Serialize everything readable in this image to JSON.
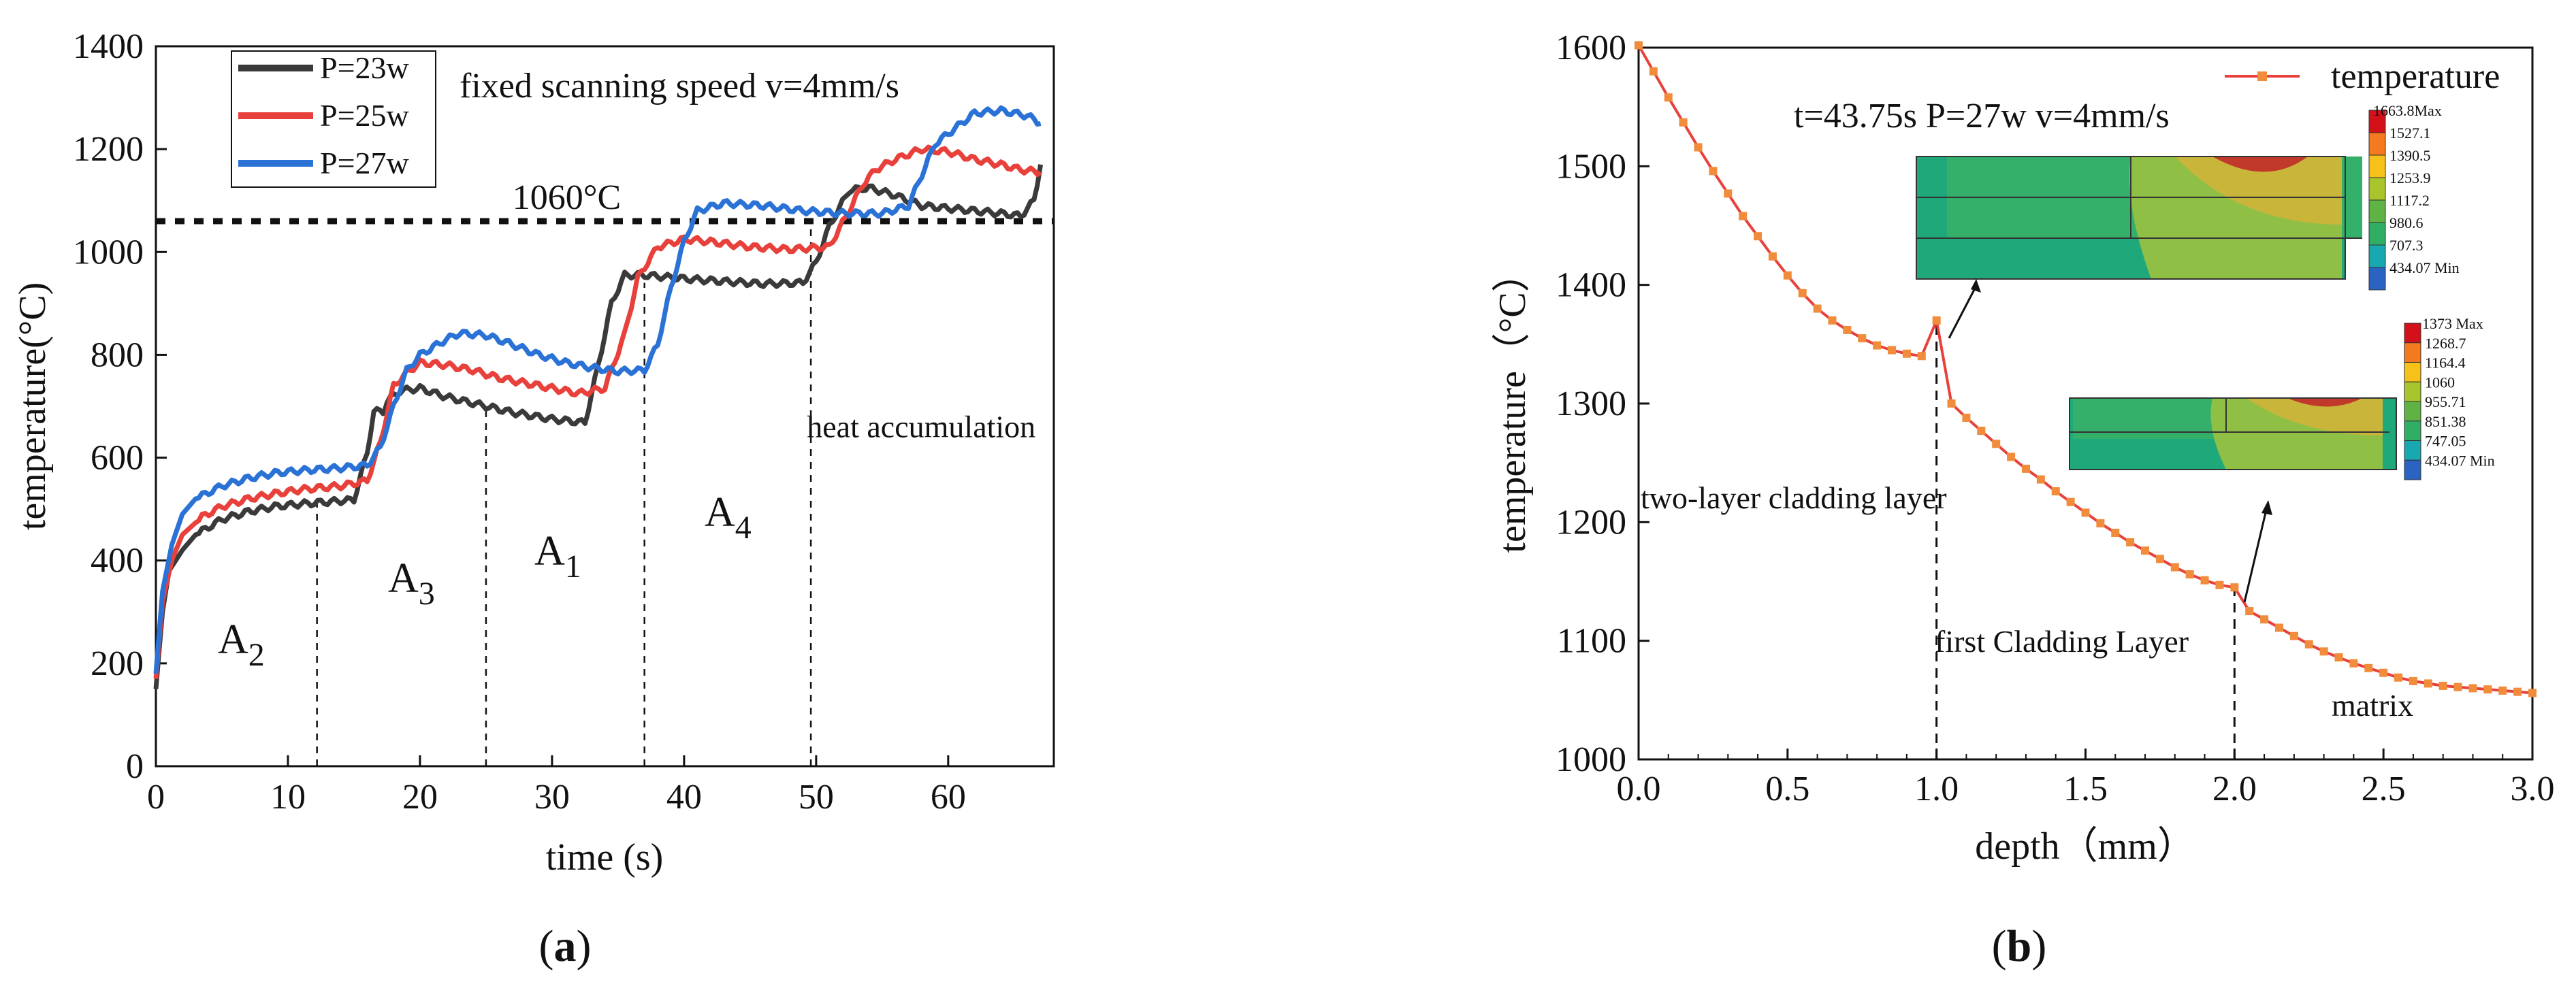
{
  "chart_data": [
    {
      "type": "line",
      "xlabel": "time (s)",
      "ylabel": "temperature(°C)",
      "xlim": [
        0,
        68
      ],
      "ylim": [
        0,
        1400
      ],
      "xticks": [
        0,
        10,
        20,
        30,
        40,
        50,
        60
      ],
      "yticks": [
        0,
        200,
        400,
        600,
        800,
        1000,
        1200,
        1400
      ],
      "annotation": "fixed scanning speed v=4mm/s",
      "reference_line": {
        "label": "1060°C",
        "value": 1060
      },
      "vlines": [
        12.2,
        25,
        37,
        49.6
      ],
      "regions": [
        {
          "base": "A",
          "sub": "2",
          "x": 5.5,
          "y": 230
        },
        {
          "base": "A",
          "sub": "3",
          "x": 19,
          "y": 330
        },
        {
          "base": "A",
          "sub": "1",
          "x": 30.5,
          "y": 390
        },
        {
          "base": "A",
          "sub": "4",
          "x": 43.5,
          "y": 470
        }
      ],
      "note": "heat accumulation",
      "legend_position": "top-left",
      "series": [
        {
          "name": "P=23w",
          "color": "#3a3a3a",
          "points": [
            [
              0,
              150
            ],
            [
              0.5,
              300
            ],
            [
              1,
              380
            ],
            [
              2,
              420
            ],
            [
              3,
              450
            ],
            [
              5,
              480
            ],
            [
              7,
              495
            ],
            [
              9,
              505
            ],
            [
              11,
              510
            ],
            [
              15,
              518
            ],
            [
              16,
              610
            ],
            [
              16.5,
              690
            ],
            [
              17.2,
              690
            ],
            [
              17.5,
              710
            ],
            [
              18.5,
              730
            ],
            [
              20,
              735
            ],
            [
              22,
              718
            ],
            [
              25,
              700
            ],
            [
              27,
              688
            ],
            [
              30,
              675
            ],
            [
              32.5,
              668
            ],
            [
              33.5,
              780
            ],
            [
              34.5,
              900
            ],
            [
              35.5,
              955
            ],
            [
              37,
              955
            ],
            [
              40,
              948
            ],
            [
              43,
              943
            ],
            [
              46,
              938
            ],
            [
              49,
              940
            ],
            [
              50,
              980
            ],
            [
              51,
              1050
            ],
            [
              52.5,
              1120
            ],
            [
              54,
              1125
            ],
            [
              56,
              1110
            ],
            [
              58,
              1090
            ],
            [
              60,
              1085
            ],
            [
              62,
              1080
            ],
            [
              64,
              1075
            ],
            [
              65.5,
              1070
            ],
            [
              66.5,
              1100
            ],
            [
              67,
              1170
            ]
          ]
        },
        {
          "name": "P=25w",
          "color": "#e8413c",
          "points": [
            [
              0,
              170
            ],
            [
              0.5,
              320
            ],
            [
              1.2,
              400
            ],
            [
              2,
              450
            ],
            [
              3.5,
              485
            ],
            [
              5,
              505
            ],
            [
              7,
              520
            ],
            [
              9,
              530
            ],
            [
              11,
              538
            ],
            [
              14,
              545
            ],
            [
              16,
              555
            ],
            [
              17,
              630
            ],
            [
              18,
              740
            ],
            [
              19,
              765
            ],
            [
              20,
              785
            ],
            [
              22,
              780
            ],
            [
              24,
              770
            ],
            [
              26,
              755
            ],
            [
              28,
              745
            ],
            [
              30,
              735
            ],
            [
              32,
              725
            ],
            [
              34,
              735
            ],
            [
              35.5,
              840
            ],
            [
              36.5,
              950
            ],
            [
              38,
              1010
            ],
            [
              40,
              1025
            ],
            [
              42,
              1020
            ],
            [
              45,
              1010
            ],
            [
              48,
              1005
            ],
            [
              51,
              1010
            ],
            [
              52.5,
              1080
            ],
            [
              53.5,
              1130
            ],
            [
              54.5,
              1160
            ],
            [
              56,
              1180
            ],
            [
              58,
              1200
            ],
            [
              60,
              1195
            ],
            [
              62,
              1180
            ],
            [
              64,
              1170
            ],
            [
              65.5,
              1160
            ],
            [
              67,
              1155
            ]
          ]
        },
        {
          "name": "P=27w",
          "color": "#2a72d6",
          "points": [
            [
              0,
              180
            ],
            [
              0.5,
              340
            ],
            [
              1.2,
              430
            ],
            [
              2,
              490
            ],
            [
              3,
              520
            ],
            [
              5,
              545
            ],
            [
              7,
              560
            ],
            [
              9,
              570
            ],
            [
              11,
              575
            ],
            [
              14,
              580
            ],
            [
              16,
              585
            ],
            [
              17,
              620
            ],
            [
              18,
              700
            ],
            [
              19,
              770
            ],
            [
              20,
              800
            ],
            [
              22,
              830
            ],
            [
              23,
              842
            ],
            [
              25,
              838
            ],
            [
              27,
              820
            ],
            [
              29,
              800
            ],
            [
              31,
              785
            ],
            [
              33,
              775
            ],
            [
              35,
              768
            ],
            [
              37,
              770
            ],
            [
              38,
              820
            ],
            [
              39,
              930
            ],
            [
              40,
              1020
            ],
            [
              41,
              1080
            ],
            [
              43,
              1095
            ],
            [
              46,
              1090
            ],
            [
              49,
              1080
            ],
            [
              52,
              1075
            ],
            [
              55,
              1075
            ],
            [
              57,
              1090
            ],
            [
              58,
              1150
            ],
            [
              59,
              1210
            ],
            [
              60,
              1230
            ],
            [
              61,
              1250
            ],
            [
              62,
              1270
            ],
            [
              64,
              1275
            ],
            [
              66,
              1265
            ],
            [
              67,
              1250
            ]
          ]
        }
      ]
    },
    {
      "type": "line",
      "xlabel": "depth（mm）",
      "ylabel": "temperature（°C）",
      "xlim": [
        0,
        3.0
      ],
      "ylim": [
        1000,
        1600
      ],
      "xticks": [
        "0.0",
        "0.5",
        "1.0",
        "1.5",
        "2.0",
        "2.5",
        "3.0"
      ],
      "yticks": [
        1000,
        1100,
        1200,
        1300,
        1400,
        1500,
        1600
      ],
      "legend": "temperature",
      "legend_position": "top-right",
      "annotation": "t=43.75s   P=27w   v=4mm/s",
      "labels": {
        "two_layer": "two-layer cladding layer",
        "first": "first Cladding Layer",
        "matrix": "matrix"
      },
      "vlines": [
        1.0,
        2.0
      ],
      "series": [
        {
          "name": "temperature",
          "color": "#e8413c",
          "marker_color": "#f08c3c",
          "x": [
            0,
            0.05,
            0.1,
            0.15,
            0.2,
            0.25,
            0.3,
            0.35,
            0.4,
            0.45,
            0.5,
            0.55,
            0.6,
            0.65,
            0.7,
            0.75,
            0.8,
            0.85,
            0.9,
            0.95,
            1.0,
            1.05,
            1.1,
            1.15,
            1.2,
            1.25,
            1.3,
            1.35,
            1.4,
            1.45,
            1.5,
            1.55,
            1.6,
            1.65,
            1.7,
            1.75,
            1.8,
            1.85,
            1.9,
            1.95,
            2.0,
            2.05,
            2.1,
            2.15,
            2.2,
            2.25,
            2.3,
            2.35,
            2.4,
            2.45,
            2.5,
            2.55,
            2.6,
            2.65,
            2.7,
            2.75,
            2.8,
            2.85,
            2.9,
            2.95,
            3.0
          ],
          "y": [
            1602,
            1580,
            1558,
            1537,
            1516,
            1496,
            1477,
            1458,
            1441,
            1424,
            1408,
            1393,
            1380,
            1370,
            1362,
            1355,
            1349,
            1345,
            1342,
            1340,
            1370,
            1300,
            1288,
            1277,
            1266,
            1255,
            1245,
            1236,
            1226,
            1217,
            1208,
            1199,
            1191,
            1183,
            1176,
            1169,
            1162,
            1156,
            1151,
            1147,
            1145,
            1125,
            1118,
            1111,
            1104,
            1097,
            1091,
            1086,
            1081,
            1077,
            1073,
            1069,
            1066,
            1064,
            1062,
            1061,
            1060,
            1059,
            1058,
            1057,
            1056
          ]
        }
      ],
      "insets": [
        {
          "title_max": "1663.8Max",
          "levels": [
            "1527.1",
            "1390.5",
            "1253.9",
            "1117.2",
            "980.6",
            "707.3",
            "434.07 Min"
          ]
        },
        {
          "title_max": "1373 Max",
          "levels": [
            "1268.7",
            "1164.4",
            "1060",
            "955.71",
            "851.38",
            "747.05",
            "434.07 Min"
          ]
        }
      ]
    }
  ],
  "panel_labels": {
    "a_open": "(",
    "a_letter": "a",
    "a_close": ")",
    "b_open": "(",
    "b_letter": "b",
    "b_close": ")"
  },
  "colors": {
    "cb": [
      "#d4111b",
      "#f47a1f",
      "#f6c21a",
      "#a8c52e",
      "#5fb244",
      "#2fae64",
      "#18a9b0",
      "#2a63c2"
    ]
  }
}
